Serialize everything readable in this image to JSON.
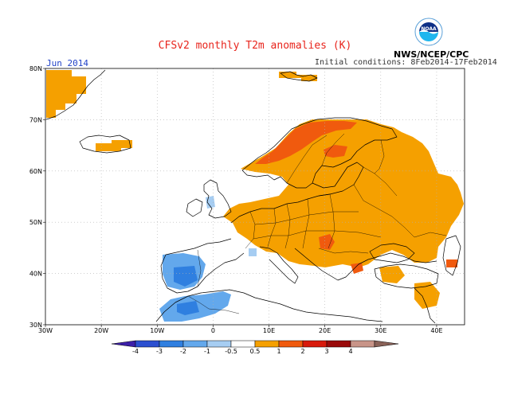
{
  "title": "CFSv2 monthly T2m anomalies (K)",
  "valid_period": "Jun 2014",
  "initial_conditions": "Initial conditions: 8Feb2014-17Feb2014",
  "agency": "NWS/NCEP/CPC",
  "logo_text": "NOAA",
  "map": {
    "lon_range": [
      -30,
      45
    ],
    "lat_range": [
      30,
      80
    ],
    "lon_ticks": [
      {
        "value": -30,
        "label": "30W"
      },
      {
        "value": -20,
        "label": "20W"
      },
      {
        "value": -10,
        "label": "10W"
      },
      {
        "value": 0,
        "label": "0"
      },
      {
        "value": 10,
        "label": "10E"
      },
      {
        "value": 20,
        "label": "20E"
      },
      {
        "value": 30,
        "label": "30E"
      },
      {
        "value": 40,
        "label": "40E"
      }
    ],
    "lat_ticks": [
      {
        "value": 30,
        "label": "30N"
      },
      {
        "value": 40,
        "label": "40N"
      },
      {
        "value": 50,
        "label": "50N"
      },
      {
        "value": 60,
        "label": "60N"
      },
      {
        "value": 70,
        "label": "70N"
      },
      {
        "value": 80,
        "label": "80N"
      }
    ]
  },
  "colorbar": {
    "labels": [
      "-4",
      "-3",
      "-2",
      "-1",
      "-0.5",
      "0.5",
      "1",
      "2",
      "3",
      "4"
    ],
    "colors": [
      "#3c1fa8",
      "#2b4fd0",
      "#2f7fe0",
      "#63a8ec",
      "#a6cdf2",
      "#ffffff",
      "#f5a000",
      "#f05a0e",
      "#d81a0c",
      "#9a0a0a",
      "#c89488",
      "#8a6258"
    ]
  },
  "chart_data": {
    "type": "heatmap",
    "variable": "2 m temperature anomaly (K)",
    "period": "Jun 2014",
    "regions": [
      {
        "name": "Scandinavia",
        "class": "0.5 to 1"
      },
      {
        "name": "Northern Norway / Kola",
        "class": "1 to 2"
      },
      {
        "name": "Central & Eastern Europe",
        "class": "0.5 to 1"
      },
      {
        "name": "Balkans (local maxima)",
        "class": "1 to 2"
      },
      {
        "name": "Greenland coast",
        "class": "0.5 to 1"
      },
      {
        "name": "Iberia",
        "class": "-1 to -0.5 / -2 to -1"
      },
      {
        "name": "NW Africa",
        "class": "-1 to -0.5 / -2 to -1"
      },
      {
        "name": "British Isles (patch)",
        "class": "-1 to -0.5"
      }
    ]
  }
}
